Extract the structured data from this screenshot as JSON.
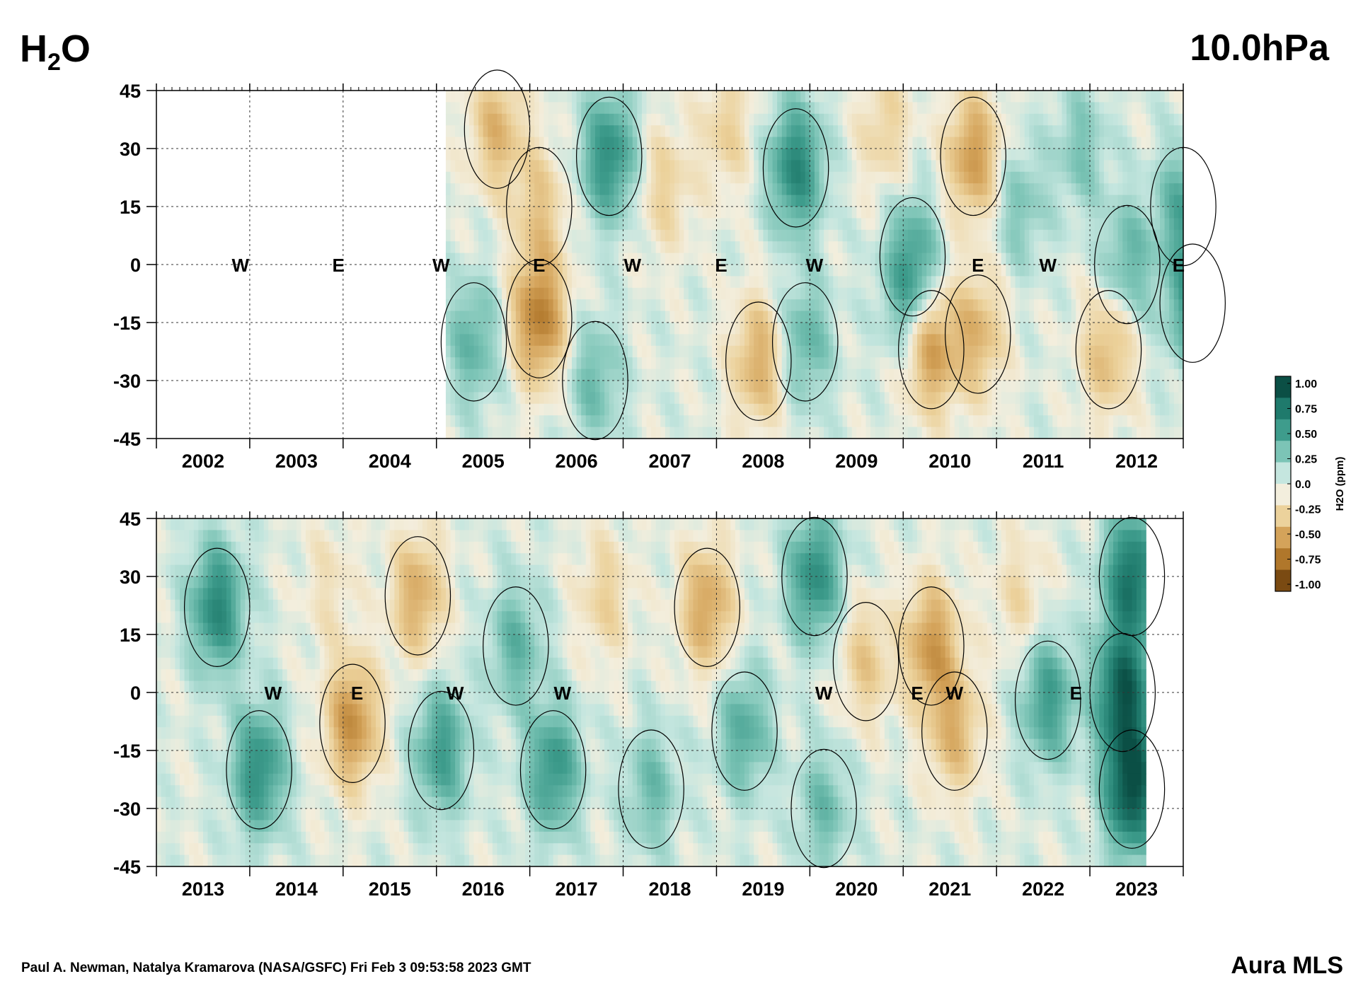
{
  "header": {
    "species_prefix": "H",
    "species_subscript": "2",
    "species_suffix": "O",
    "pressure_level": "10.0hPa"
  },
  "footer": {
    "credit": "Paul A. Newman, Natalya Kramarova (NASA/GSFC) Fri Feb  3 09:53:58 2023 GMT",
    "instrument": "Aura MLS"
  },
  "colorbar": {
    "title": "H2O (ppm)",
    "tick_labels": [
      "1.00",
      "0.75",
      "0.50",
      "0.25",
      "0.0",
      "-0.25",
      "-0.50",
      "-0.75",
      "-1.00"
    ],
    "colors_high_to_low": [
      "#0b4f45",
      "#1f7a6c",
      "#3e9c8c",
      "#7cc4b6",
      "#c5e6df",
      "#f3eedd",
      "#ecd29c",
      "#d4a35a",
      "#b0772b",
      "#7a4a12"
    ]
  },
  "chart_data": [
    {
      "type": "heatmap",
      "panel": "top",
      "x_tick_labels": [
        "2002",
        "2003",
        "2004",
        "2005",
        "2006",
        "2007",
        "2008",
        "2009",
        "2010",
        "2011",
        "2012"
      ],
      "y_tick_labels": [
        "45",
        "30",
        "15",
        "0",
        "-15",
        "-30",
        "-45"
      ],
      "ylim": [
        -45,
        45
      ],
      "grid": true,
      "data_start_year": 2004.6,
      "qbo_labels": [
        {
          "text": "W",
          "year": 2002.4
        },
        {
          "text": "E",
          "year": 2003.45
        },
        {
          "text": "W",
          "year": 2004.55
        },
        {
          "text": "E",
          "year": 2005.6
        },
        {
          "text": "W",
          "year": 2006.6
        },
        {
          "text": "E",
          "year": 2007.55
        },
        {
          "text": "W",
          "year": 2008.55
        },
        {
          "text": "E",
          "year": 2010.3
        },
        {
          "text": "W",
          "year": 2011.05
        },
        {
          "text": "E",
          "year": 2012.45
        }
      ],
      "anomaly_features": [
        {
          "year": 2004.9,
          "lat": -20,
          "value": 0.35
        },
        {
          "year": 2005.15,
          "lat": 35,
          "value": -0.4
        },
        {
          "year": 2005.6,
          "lat": 15,
          "value": -0.3
        },
        {
          "year": 2005.6,
          "lat": -14,
          "value": -0.7
        },
        {
          "year": 2006.35,
          "lat": 28,
          "value": 0.6
        },
        {
          "year": 2006.2,
          "lat": -30,
          "value": 0.3
        },
        {
          "year": 2006.95,
          "lat": 20,
          "value": -0.25
        },
        {
          "year": 2007.6,
          "lat": 35,
          "value": -0.25
        },
        {
          "year": 2007.95,
          "lat": -25,
          "value": -0.45
        },
        {
          "year": 2008.35,
          "lat": 25,
          "value": 0.65
        },
        {
          "year": 2008.45,
          "lat": -20,
          "value": 0.35
        },
        {
          "year": 2009.3,
          "lat": 35,
          "value": -0.25
        },
        {
          "year": 2009.55,
          "lat": -10,
          "value": 0.25
        },
        {
          "year": 2009.6,
          "lat": 2,
          "value": 0.4
        },
        {
          "year": 2009.8,
          "lat": -22,
          "value": -0.55
        },
        {
          "year": 2010.25,
          "lat": 28,
          "value": -0.55
        },
        {
          "year": 2010.3,
          "lat": -18,
          "value": -0.4
        },
        {
          "year": 2010.75,
          "lat": 15,
          "value": 0.25
        },
        {
          "year": 2011.4,
          "lat": 30,
          "value": 0.25
        },
        {
          "year": 2011.7,
          "lat": -22,
          "value": -0.4
        },
        {
          "year": 2011.9,
          "lat": 0,
          "value": 0.35
        },
        {
          "year": 2012.5,
          "lat": 15,
          "value": 0.4
        },
        {
          "year": 2012.6,
          "lat": -10,
          "value": 0.5
        }
      ]
    },
    {
      "type": "heatmap",
      "panel": "bottom",
      "x_tick_labels": [
        "2013",
        "2014",
        "2015",
        "2016",
        "2017",
        "2018",
        "2019",
        "2020",
        "2021",
        "2022",
        "2023"
      ],
      "y_tick_labels": [
        "45",
        "30",
        "15",
        "0",
        "-15",
        "-30",
        "-45"
      ],
      "ylim": [
        -45,
        45
      ],
      "grid": true,
      "data_end_year": 2023.1,
      "qbo_labels": [
        {
          "text": "W",
          "year": 2013.75
        },
        {
          "text": "E",
          "year": 2014.65
        },
        {
          "text": "W",
          "year": 2015.7
        },
        {
          "text": "W",
          "year": 2016.85
        },
        {
          "text": "W",
          "year": 2019.65
        },
        {
          "text": "E",
          "year": 2020.65
        },
        {
          "text": "W",
          "year": 2021.05
        },
        {
          "text": "E",
          "year": 2022.35
        }
      ],
      "anomaly_features": [
        {
          "year": 2013.15,
          "lat": 22,
          "value": 0.65
        },
        {
          "year": 2013.6,
          "lat": -20,
          "value": 0.6
        },
        {
          "year": 2014.35,
          "lat": 28,
          "value": -0.15
        },
        {
          "year": 2014.6,
          "lat": -8,
          "value": -0.6
        },
        {
          "year": 2015.3,
          "lat": 25,
          "value": -0.45
        },
        {
          "year": 2015.55,
          "lat": -15,
          "value": 0.5
        },
        {
          "year": 2016.35,
          "lat": 12,
          "value": 0.35
        },
        {
          "year": 2016.75,
          "lat": -20,
          "value": 0.55
        },
        {
          "year": 2017.3,
          "lat": 25,
          "value": -0.25
        },
        {
          "year": 2017.8,
          "lat": -25,
          "value": 0.3
        },
        {
          "year": 2018.4,
          "lat": 22,
          "value": -0.5
        },
        {
          "year": 2018.8,
          "lat": -10,
          "value": 0.4
        },
        {
          "year": 2019.55,
          "lat": 30,
          "value": 0.6
        },
        {
          "year": 2019.65,
          "lat": -30,
          "value": 0.3
        },
        {
          "year": 2020.1,
          "lat": 8,
          "value": -0.3
        },
        {
          "year": 2020.8,
          "lat": 12,
          "value": -0.55
        },
        {
          "year": 2021.05,
          "lat": -10,
          "value": -0.4
        },
        {
          "year": 2021.75,
          "lat": 25,
          "value": -0.2
        },
        {
          "year": 2022.05,
          "lat": -2,
          "value": 0.5
        },
        {
          "year": 2022.85,
          "lat": 0,
          "value": 0.9
        },
        {
          "year": 2022.95,
          "lat": -25,
          "value": 1.0
        },
        {
          "year": 2022.95,
          "lat": 30,
          "value": 0.8
        }
      ]
    }
  ]
}
